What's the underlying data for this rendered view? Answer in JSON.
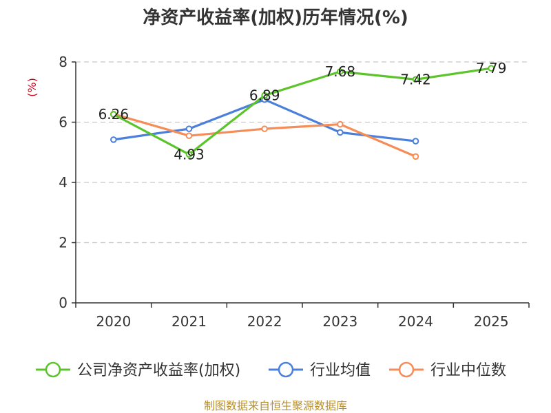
{
  "chart_data": {
    "type": "line",
    "title": "净资产收益率(加权)历年情况(%)",
    "ylabel": "(%)",
    "xlabel": "",
    "categories": [
      "2020",
      "2021",
      "2022",
      "2023",
      "2024",
      "2025"
    ],
    "ylim": [
      0,
      8
    ],
    "yticks": [
      0,
      2,
      4,
      6,
      8
    ],
    "grid": true,
    "legend_position": "bottom",
    "series": [
      {
        "name": "公司净资产收益率(加权)",
        "color": "#5cc42b",
        "values": [
          6.26,
          4.93,
          6.89,
          7.68,
          7.42,
          7.79
        ],
        "labels": [
          "6.26",
          "4.93",
          "6.89",
          "7.68",
          "7.42",
          "7.79"
        ]
      },
      {
        "name": "行业均值",
        "color": "#4a7fdc",
        "values": [
          5.42,
          5.78,
          6.75,
          5.66,
          5.37,
          null
        ]
      },
      {
        "name": "行业中位数",
        "color": "#f68c57",
        "values": [
          6.27,
          5.55,
          5.78,
          5.93,
          4.86,
          null
        ]
      }
    ],
    "source": "制图数据来自恒生聚源数据库"
  }
}
